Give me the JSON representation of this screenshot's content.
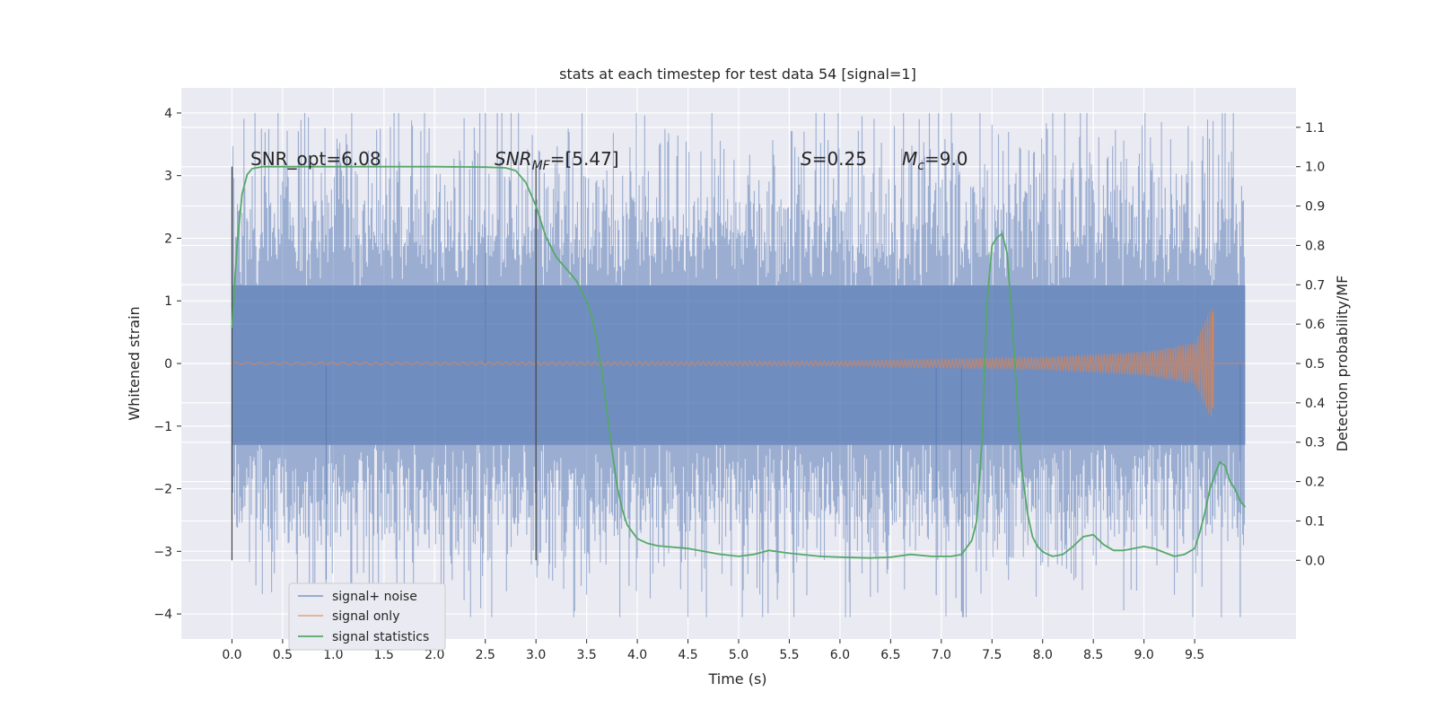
{
  "chart_data": {
    "type": "line",
    "title": "stats at each timestep for test data 54 [signal=1]",
    "xlabel": "Time (s)",
    "ylabel": "Whitened strain",
    "y2label": "Detection probability/MF",
    "xlim": [
      -0.5,
      10.5
    ],
    "ylim": [
      -4.4,
      4.4
    ],
    "y2lim": [
      -0.2,
      1.2
    ],
    "x_ticks": [
      "0.0",
      "0.5",
      "1.0",
      "1.5",
      "2.0",
      "2.5",
      "3.0",
      "3.5",
      "4.0",
      "4.5",
      "5.0",
      "5.5",
      "6.0",
      "6.5",
      "7.0",
      "7.5",
      "8.0",
      "8.5",
      "9.0",
      "9.5"
    ],
    "y_ticks": [
      "4",
      "3",
      "2",
      "1",
      "0",
      "−1",
      "−2",
      "−3",
      "−4"
    ],
    "y2_ticks": [
      "1.1",
      "1.0",
      "0.9",
      "0.8",
      "0.7",
      "0.6",
      "0.5",
      "0.4",
      "0.3",
      "0.2",
      "0.1",
      "0.0"
    ],
    "grid": true,
    "legend_position": "lower-left",
    "annotations": {
      "snr_opt": "SNR_opt=6.08",
      "snr_mf_sym": "SNR",
      "snr_mf_sub": "MF",
      "snr_mf_val": "=[5.47]",
      "s_sym": "S",
      "s_val": "=0.25",
      "mc_sym": "M",
      "mc_sub": "c",
      "mc_val": "=9.0"
    },
    "vertical_markers": [
      0.0,
      3.0
    ],
    "series": [
      {
        "name": "signal+ noise",
        "color": "#4c72b0",
        "axis": "left",
        "x_range": [
          0,
          10
        ],
        "noise_core_band": [
          -1.3,
          1.25
        ],
        "typical_peak_range": [
          -2.6,
          2.9
        ],
        "max": 4.0,
        "min": -4.05
      },
      {
        "name": "signal only",
        "color": "#dd8452",
        "axis": "left",
        "x_range": [
          0,
          9.68
        ],
        "amplitude_envelope": [
          {
            "x": 0.0,
            "a": 0.02
          },
          {
            "x": 6.0,
            "a": 0.04
          },
          {
            "x": 8.0,
            "a": 0.1
          },
          {
            "x": 9.0,
            "a": 0.19
          },
          {
            "x": 9.5,
            "a": 0.33
          },
          {
            "x": 9.68,
            "a": 0.95
          }
        ]
      },
      {
        "name": "signal statistics",
        "color": "#55a868",
        "axis": "right",
        "x": [
          0.0,
          0.05,
          0.1,
          0.15,
          0.2,
          0.3,
          0.5,
          1.0,
          1.5,
          2.0,
          2.5,
          2.7,
          2.8,
          2.9,
          3.0,
          3.1,
          3.2,
          3.3,
          3.4,
          3.5,
          3.55,
          3.6,
          3.65,
          3.7,
          3.75,
          3.8,
          3.85,
          3.9,
          4.0,
          4.1,
          4.2,
          4.5,
          4.8,
          5.0,
          5.15,
          5.3,
          5.5,
          5.8,
          6.0,
          6.3,
          6.5,
          6.7,
          6.9,
          7.1,
          7.2,
          7.3,
          7.35,
          7.4,
          7.45,
          7.5,
          7.55,
          7.6,
          7.65,
          7.7,
          7.75,
          7.8,
          7.85,
          7.9,
          7.95,
          8.0,
          8.05,
          8.1,
          8.2,
          8.3,
          8.4,
          8.5,
          8.6,
          8.7,
          8.8,
          8.9,
          9.0,
          9.1,
          9.2,
          9.3,
          9.4,
          9.5,
          9.55,
          9.6,
          9.65,
          9.7,
          9.75,
          9.8,
          9.85,
          9.9,
          9.95,
          10.0
        ],
        "values": [
          0.59,
          0.8,
          0.93,
          0.98,
          0.995,
          1.0,
          1.0,
          1.0,
          1.0,
          1.0,
          0.999,
          0.997,
          0.99,
          0.96,
          0.9,
          0.82,
          0.77,
          0.74,
          0.71,
          0.66,
          0.62,
          0.56,
          0.48,
          0.38,
          0.28,
          0.19,
          0.13,
          0.09,
          0.055,
          0.043,
          0.037,
          0.03,
          0.016,
          0.01,
          0.015,
          0.025,
          0.018,
          0.01,
          0.008,
          0.006,
          0.008,
          0.015,
          0.01,
          0.01,
          0.015,
          0.05,
          0.1,
          0.3,
          0.65,
          0.8,
          0.82,
          0.83,
          0.78,
          0.6,
          0.4,
          0.22,
          0.12,
          0.06,
          0.035,
          0.022,
          0.015,
          0.01,
          0.015,
          0.035,
          0.06,
          0.065,
          0.04,
          0.025,
          0.025,
          0.03,
          0.035,
          0.03,
          0.02,
          0.01,
          0.015,
          0.03,
          0.07,
          0.12,
          0.18,
          0.22,
          0.25,
          0.24,
          0.2,
          0.18,
          0.15,
          0.135
        ]
      }
    ]
  }
}
